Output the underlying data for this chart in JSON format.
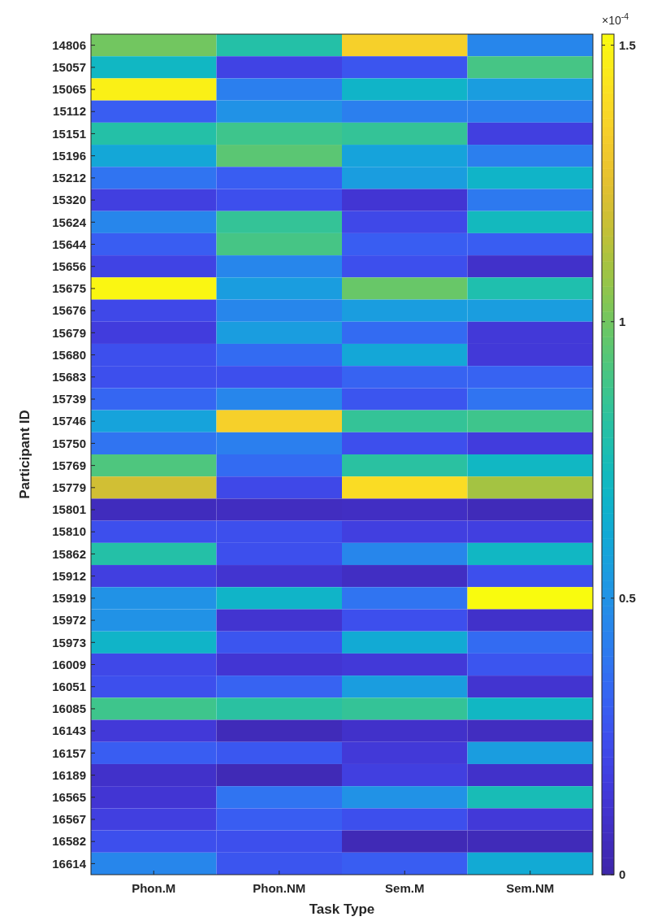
{
  "chart_data": {
    "type": "heatmap",
    "xlabel": "Task Type",
    "ylabel": "Participant ID",
    "categories": [
      "Phon.M",
      "Phon.NM",
      "Sem.M",
      "Sem.NM"
    ],
    "y_categories": [
      "14806",
      "15057",
      "15065",
      "15112",
      "15151",
      "15196",
      "15212",
      "15320",
      "15624",
      "15644",
      "15656",
      "15675",
      "15676",
      "15679",
      "15680",
      "15683",
      "15739",
      "15746",
      "15750",
      "15769",
      "15779",
      "15801",
      "15810",
      "15862",
      "15912",
      "15919",
      "15972",
      "15973",
      "16009",
      "16051",
      "16085",
      "16143",
      "16157",
      "16189",
      "16565",
      "16567",
      "16582",
      "16614"
    ],
    "cells": [
      [
        1.0,
        0.8,
        1.35,
        0.45
      ],
      [
        0.7,
        0.2,
        0.27,
        0.9
      ],
      [
        1.48,
        0.42,
        0.68,
        0.55
      ],
      [
        0.3,
        0.5,
        0.42,
        0.42
      ],
      [
        0.8,
        0.88,
        0.85,
        0.18
      ],
      [
        0.6,
        0.95,
        0.58,
        0.42
      ],
      [
        0.38,
        0.3,
        0.55,
        0.68
      ],
      [
        0.18,
        0.25,
        0.13,
        0.4
      ],
      [
        0.45,
        0.85,
        0.22,
        0.72
      ],
      [
        0.3,
        0.9,
        0.3,
        0.3
      ],
      [
        0.2,
        0.45,
        0.25,
        0.1
      ],
      [
        1.5,
        0.55,
        0.98,
        0.78
      ],
      [
        0.22,
        0.45,
        0.55,
        0.55
      ],
      [
        0.17,
        0.55,
        0.35,
        0.15
      ],
      [
        0.25,
        0.35,
        0.6,
        0.15
      ],
      [
        0.25,
        0.25,
        0.32,
        0.32
      ],
      [
        0.33,
        0.45,
        0.27,
        0.38
      ],
      [
        0.58,
        1.35,
        0.85,
        0.88
      ],
      [
        0.38,
        0.42,
        0.25,
        0.17
      ],
      [
        0.92,
        0.35,
        0.82,
        0.7
      ],
      [
        1.2,
        0.22,
        1.4,
        1.1
      ],
      [
        0.06,
        0.07,
        0.08,
        0.05
      ],
      [
        0.25,
        0.25,
        0.18,
        0.18
      ],
      [
        0.8,
        0.25,
        0.45,
        0.7
      ],
      [
        0.18,
        0.12,
        0.08,
        0.25
      ],
      [
        0.5,
        0.68,
        0.38,
        1.52
      ],
      [
        0.5,
        0.12,
        0.25,
        0.1
      ],
      [
        0.68,
        0.27,
        0.62,
        0.35
      ],
      [
        0.22,
        0.13,
        0.15,
        0.27
      ],
      [
        0.25,
        0.32,
        0.55,
        0.12
      ],
      [
        0.88,
        0.82,
        0.85,
        0.7
      ],
      [
        0.15,
        0.05,
        0.1,
        0.07
      ],
      [
        0.3,
        0.28,
        0.15,
        0.55
      ],
      [
        0.1,
        0.04,
        0.18,
        0.1
      ],
      [
        0.13,
        0.38,
        0.5,
        0.75
      ],
      [
        0.18,
        0.3,
        0.25,
        0.15
      ],
      [
        0.25,
        0.25,
        0.04,
        0.05
      ],
      [
        0.45,
        0.27,
        0.3,
        0.62
      ]
    ],
    "clim": [
      0,
      1.52
    ],
    "cticks": [
      0,
      0.5,
      1,
      1.5
    ],
    "annotations": [
      "×10$^{-4}$"
    ]
  }
}
